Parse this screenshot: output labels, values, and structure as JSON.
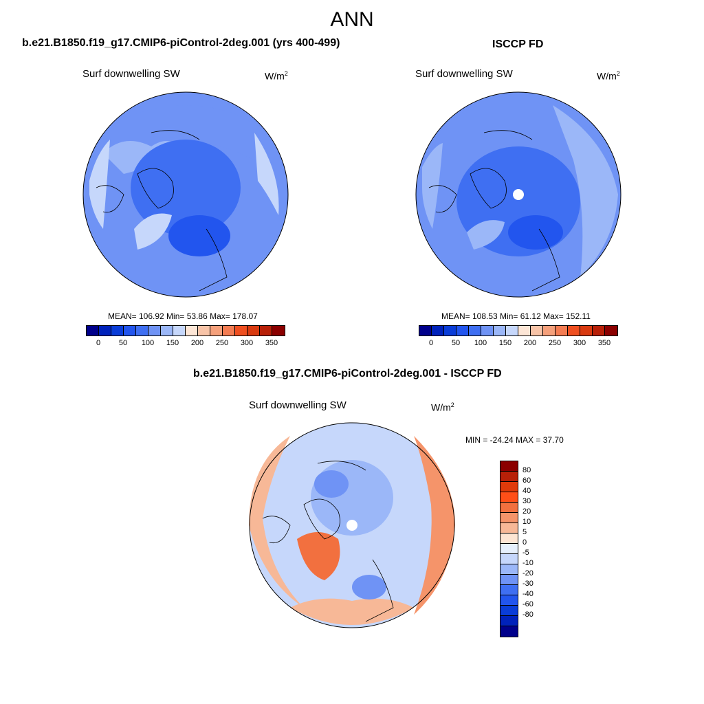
{
  "title": "ANN",
  "panel_left": {
    "case": "b.e21.B1850.f19_g17.CMIP6-piControl-2deg.001 (yrs 400-499)",
    "variable": "Surf downwelling SW",
    "units": "W/m",
    "units_exp": "2",
    "stats": "MEAN= 106.92  Min=  53.86  Max= 178.07"
  },
  "panel_right": {
    "case": "ISCCP FD",
    "variable": "Surf downwelling SW",
    "units": "W/m",
    "units_exp": "2",
    "stats": "MEAN= 108.53  Min=  61.12  Max= 152.11"
  },
  "panel_diff": {
    "case": "b.e21.B1850.f19_g17.CMIP6-piControl-2deg.001 - ISCCP FD",
    "variable": "Surf downwelling SW",
    "units": "W/m",
    "units_exp": "2",
    "stats": "MIN = -24.24 MAX =  37.70"
  },
  "abs_colorbar": {
    "colors": [
      "#00008b",
      "#0022bb",
      "#0a3dd8",
      "#2255ee",
      "#3f6ff2",
      "#6f93f5",
      "#9bb7f8",
      "#c6d7fb",
      "#fde6d6",
      "#f8c4a8",
      "#f5a07b",
      "#f47c52",
      "#ef4f20",
      "#d93a10",
      "#b82008",
      "#8b0000"
    ],
    "ticks": [
      "0",
      "50",
      "100",
      "150",
      "200",
      "250",
      "300",
      "350"
    ]
  },
  "diff_colorbar": {
    "colors": [
      "#8b0000",
      "#b82008",
      "#e03a0a",
      "#ff4f18",
      "#f2703f",
      "#f5946a",
      "#f7b897",
      "#fde5d3",
      "#e6f0fc",
      "#c6d7fb",
      "#9bb7f8",
      "#6f93f5",
      "#3f6ff2",
      "#2255ee",
      "#0a3dd8",
      "#0022bb",
      "#00008b"
    ],
    "ticks": [
      "80",
      "60",
      "40",
      "30",
      "20",
      "10",
      "5",
      "0",
      "-5",
      "-10",
      "-20",
      "-30",
      "-40",
      "-60",
      "-80"
    ]
  }
}
